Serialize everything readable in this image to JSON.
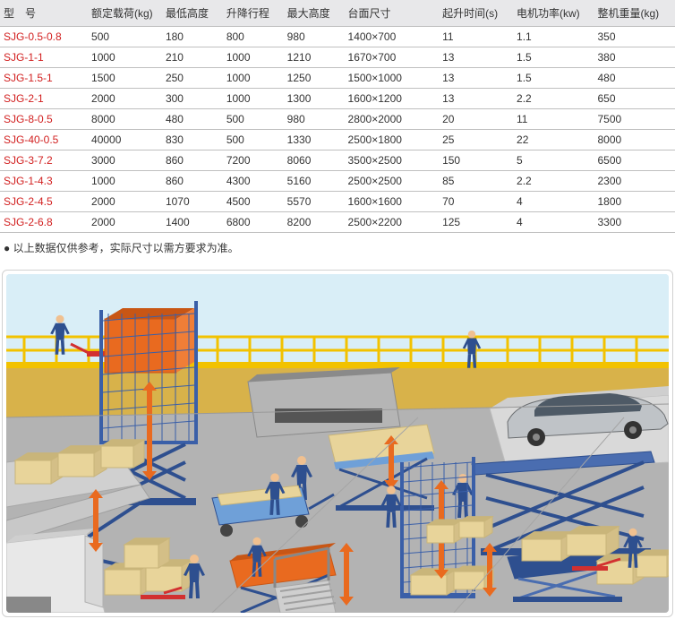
{
  "table": {
    "headers": [
      "型　号",
      "额定载荷(kg)",
      "最低高度",
      "升降行程",
      "最大高度",
      "台面尺寸",
      "起升时间(s)",
      "电机功率(kw)",
      "整机重量(kg)"
    ],
    "col_widths": [
      "13%",
      "11%",
      "9%",
      "9%",
      "9%",
      "14%",
      "11%",
      "12%",
      "12%"
    ],
    "rows": [
      [
        "SJG-0.5-0.8",
        "500",
        "180",
        "800",
        "980",
        "1400×700",
        "11",
        "1.1",
        "350"
      ],
      [
        "SJG-1-1",
        "1000",
        "210",
        "1000",
        "1210",
        "1670×700",
        "13",
        "1.5",
        "380"
      ],
      [
        "SJG-1.5-1",
        "1500",
        "250",
        "1000",
        "1250",
        "1500×1000",
        "13",
        "1.5",
        "480"
      ],
      [
        "SJG-2-1",
        "2000",
        "300",
        "1000",
        "1300",
        "1600×1200",
        "13",
        "2.2",
        "650"
      ],
      [
        "SJG-8-0.5",
        "8000",
        "480",
        "500",
        "980",
        "2800×2000",
        "20",
        "11",
        "7500"
      ],
      [
        "SJG-40-0.5",
        "40000",
        "830",
        "500",
        "1330",
        "2500×1800",
        "25",
        "22",
        "8000"
      ],
      [
        "SJG-3-7.2",
        "3000",
        "860",
        "7200",
        "8060",
        "3500×2500",
        "150",
        "5",
        "6500"
      ],
      [
        "SJG-1-4.3",
        "1000",
        "860",
        "4300",
        "5160",
        "2500×2500",
        "85",
        "2.2",
        "2300"
      ],
      [
        "SJG-2-4.5",
        "2000",
        "1070",
        "4500",
        "5570",
        "1600×1600",
        "70",
        "4",
        "1800"
      ],
      [
        "SJG-2-6.8",
        "2000",
        "1400",
        "6800",
        "8200",
        "2500×2200",
        "125",
        "4",
        "3300"
      ]
    ],
    "header_bg": "#e8e8ea",
    "border_color": "#bfbfbf",
    "model_color": "#d22020",
    "text_color": "#333333"
  },
  "note": "● 以上数据仅供参考，实际尺寸以需方要求为准。",
  "illustration": {
    "colors": {
      "sky": "#c7e8f5",
      "floor": "#b3b3b3",
      "floor_dark": "#9a9a9a",
      "rail_yellow": "#f2c200",
      "orange": "#e96a1f",
      "orange_dark": "#c85615",
      "blue": "#2e4f8f",
      "blue_light": "#4a6db0",
      "box_tan": "#e8d49a",
      "box_tan_dark": "#c9b57a",
      "mesh_blue": "#3a5fa8",
      "worker_blue": "#2e4f8f",
      "worker_skin": "#f0c090",
      "gray_mach": "#8a8a8a",
      "gray_mach_light": "#b5b5b5",
      "car_body": "#bfc3c7",
      "car_dark": "#6a6d70",
      "white": "#ffffff",
      "black": "#333333",
      "arrow": "#e96a1f",
      "red": "#d23030"
    }
  }
}
